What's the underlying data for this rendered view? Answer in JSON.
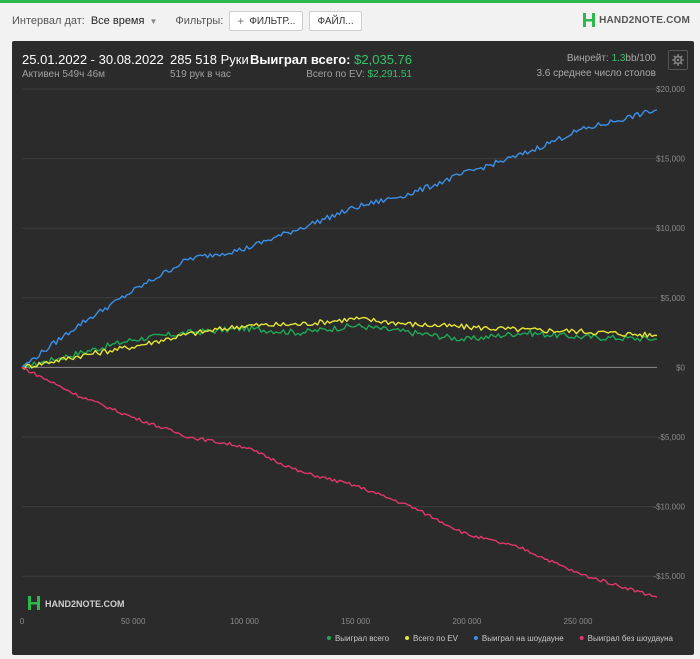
{
  "toolbar": {
    "date_interval_label": "Интервал дат:",
    "date_interval_value": "Все время",
    "filters_label": "Фильтры:",
    "filter_button": "ФИЛЬТР...",
    "file_button": "ФАЙЛ...",
    "logo": "HAND2NOTE.COM"
  },
  "summary": {
    "date_range": "25.01.2022 - 30.08.2022",
    "active": "Активен 549ч 46м",
    "hands": "285 518 Руки",
    "hands_per_hour": "519 рук в час",
    "won_total_label": "Выиграл всего:",
    "won_total_value": "$2,035.76",
    "ev_total_label": "Всего по EV:",
    "ev_total_value": "$2,291.51",
    "winrate_label": "Винрейт:",
    "winrate_value": "1.3",
    "winrate_suffix": "bb/100",
    "avg_tables": "3.6 среднее число столов",
    "watermark": "HAND2NOTE.COM"
  },
  "colors": {
    "accent": "#2db84d",
    "won_total": "#1fa855",
    "ev": "#e6e633",
    "showdown": "#3b8fe6",
    "non_showdown": "#e0386a",
    "panel": "#2b2b2b"
  },
  "chart_data": {
    "type": "line",
    "xlim": [
      0,
      285518
    ],
    "ylim": [
      -17500,
      20000
    ],
    "x_ticks": [
      0,
      50000,
      100000,
      150000,
      200000,
      250000
    ],
    "x_tick_labels": [
      "0",
      "50 000",
      "100 000",
      "150 000",
      "200 000",
      "250 000"
    ],
    "y_ticks": [
      20000,
      15000,
      10000,
      5000,
      0,
      -5000,
      -10000,
      -15000
    ],
    "y_tick_labels": [
      "$20,000",
      "$15,000",
      "$10,000",
      "$5,000",
      "$0",
      "-$5,000",
      "-$10,000",
      "-$15,000"
    ],
    "grid": true,
    "legend_position": "bottom-right",
    "x": [
      0,
      25000,
      50000,
      75000,
      100000,
      125000,
      150000,
      175000,
      200000,
      225000,
      250000,
      285518
    ],
    "series": [
      {
        "name": "Выиграл всего",
        "color_key": "won_total",
        "values": [
          0,
          1000,
          2000,
          2500,
          2800,
          2500,
          3000,
          2500,
          2000,
          2500,
          2200,
          2035.76
        ]
      },
      {
        "name": "Всего по EV",
        "color_key": "ev",
        "values": [
          0,
          800,
          1500,
          2400,
          3000,
          3100,
          3500,
          3100,
          2900,
          2700,
          2600,
          2291.51
        ]
      },
      {
        "name": "Выиграл на шоудауне",
        "color_key": "showdown",
        "values": [
          0,
          3000,
          5500,
          7800,
          8500,
          10000,
          11500,
          12500,
          14000,
          15300,
          17000,
          18500
        ]
      },
      {
        "name": "Выиграл без шоудауна",
        "color_key": "non_showdown",
        "values": [
          0,
          -2000,
          -3600,
          -5000,
          -5700,
          -7500,
          -8500,
          -10000,
          -12000,
          -13000,
          -14800,
          -16500
        ]
      }
    ]
  }
}
